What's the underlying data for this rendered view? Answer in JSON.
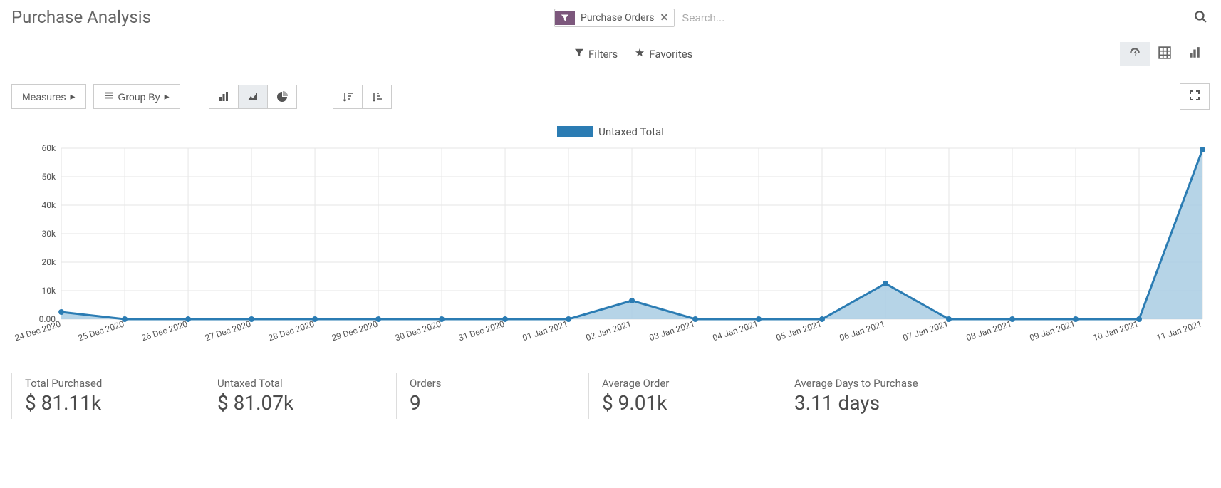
{
  "page": {
    "title": "Purchase Analysis"
  },
  "search": {
    "tag_label": "Purchase Orders",
    "placeholder": "Search..."
  },
  "filter_bar": {
    "filters_label": "Filters",
    "favorites_label": "Favorites"
  },
  "toolbar": {
    "measures_label": "Measures",
    "group_by_label": "Group By"
  },
  "chart": {
    "type": "area",
    "legend_label": "Untaxed Total",
    "series_color": "#2b7cb3",
    "fill_color": "#a9cce3",
    "fill_opacity": 0.85,
    "line_width": 3,
    "marker_radius": 4,
    "background_color": "#ffffff",
    "grid_color": "#e6e6e6",
    "axis_color": "#e0e0e0",
    "tick_font_size": 12,
    "tick_color": "#555555",
    "ylim": [
      0,
      60000
    ],
    "yticks": [
      0,
      10000,
      20000,
      30000,
      40000,
      50000,
      60000
    ],
    "ytick_labels": [
      "0.00",
      "10k",
      "20k",
      "30k",
      "40k",
      "50k",
      "60k"
    ],
    "categories": [
      "24 Dec 2020",
      "25 Dec 2020",
      "26 Dec 2020",
      "27 Dec 2020",
      "28 Dec 2020",
      "29 Dec 2020",
      "30 Dec 2020",
      "31 Dec 2020",
      "01 Jan 2021",
      "02 Jan 2021",
      "03 Jan 2021",
      "04 Jan 2021",
      "05 Jan 2021",
      "06 Jan 2021",
      "07 Jan 2021",
      "08 Jan 2021",
      "09 Jan 2021",
      "10 Jan 2021",
      "11 Jan 2021"
    ],
    "values": [
      2500,
      0,
      0,
      0,
      0,
      0,
      0,
      0,
      0,
      6500,
      0,
      0,
      0,
      12500,
      0,
      0,
      0,
      0,
      59500
    ]
  },
  "stats": [
    {
      "label": "Total Purchased",
      "value": "$ 81.11k"
    },
    {
      "label": "Untaxed Total",
      "value": "$ 81.07k"
    },
    {
      "label": "Orders",
      "value": "9"
    },
    {
      "label": "Average Order",
      "value": "$ 9.01k"
    },
    {
      "label": "Average Days to Purchase",
      "value": "3.11 days"
    }
  ]
}
